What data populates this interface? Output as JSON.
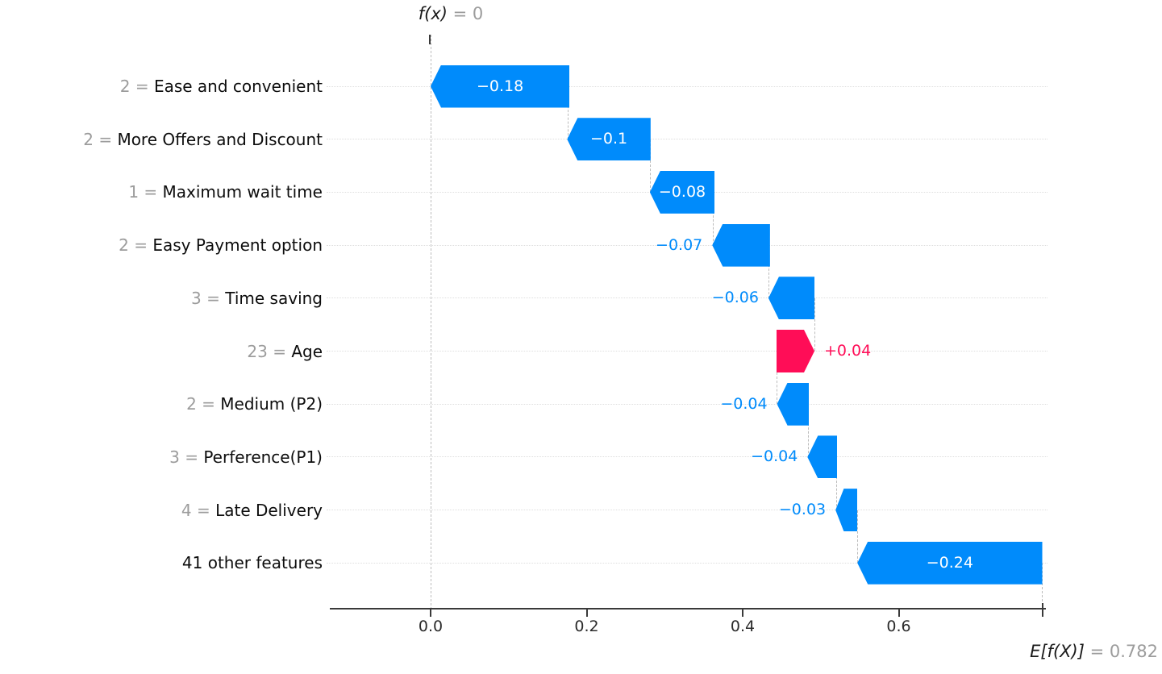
{
  "colors": {
    "negative": "#008bfb",
    "positive": "#ff0d57",
    "axis": "#3a3a3a",
    "grid": "#dedede",
    "connector": "#bcbcbc",
    "feature_text": "#0d0d0d",
    "feature_value_text": "#9c9c9c",
    "inside_label_text": "#ffffff"
  },
  "chart_data": {
    "type": "waterfall",
    "title": "",
    "fx_annotation": {
      "expression": "f(x)",
      "value_text": " = 0"
    },
    "expected_value_annotation": {
      "expression": "E[f(X)]",
      "value_text": " = 0.782"
    },
    "x_axis": {
      "tick_values": [
        0.0,
        0.2,
        0.4,
        0.6
      ],
      "tick_labels": [
        "0.0",
        "0.2",
        "0.4",
        "0.6"
      ],
      "range": [
        -0.131,
        0.789
      ],
      "expected_value": 0.782,
      "expected_value_tick": 0.784,
      "grid": "horizontal-dotted",
      "legend": "none"
    },
    "rows": [
      {
        "feature": "Ease and convenient",
        "feature_value": "2",
        "shap_value": -0.18,
        "label": "−0.18",
        "span": [
          0.0,
          0.178
        ],
        "sign": "negative",
        "label_inside": true
      },
      {
        "feature": "More Offers and Discount",
        "feature_value": "2",
        "shap_value": -0.1,
        "label": "−0.1",
        "span": [
          0.175,
          0.282
        ],
        "sign": "negative",
        "label_inside": true
      },
      {
        "feature": "Maximum wait time",
        "feature_value": "1",
        "shap_value": -0.08,
        "label": "−0.08",
        "span": [
          0.281,
          0.364
        ],
        "sign": "negative",
        "label_inside": true
      },
      {
        "feature": "Easy Payment option",
        "feature_value": "2",
        "shap_value": -0.07,
        "label": "−0.07",
        "span": [
          0.361,
          0.435
        ],
        "sign": "negative",
        "label_inside": false
      },
      {
        "feature": "Time saving",
        "feature_value": "3",
        "shap_value": -0.06,
        "label": "−0.06",
        "span": [
          0.433,
          0.492
        ],
        "sign": "negative",
        "label_inside": false
      },
      {
        "feature": "Age",
        "feature_value": "23",
        "shap_value": 0.04,
        "label": "+0.04",
        "span": [
          0.443,
          0.492
        ],
        "sign": "positive",
        "label_inside": false
      },
      {
        "feature": "Medium (P2)",
        "feature_value": "2",
        "shap_value": -0.04,
        "label": "−0.04",
        "span": [
          0.444,
          0.485
        ],
        "sign": "negative",
        "label_inside": false
      },
      {
        "feature": "Perference(P1)",
        "feature_value": "3",
        "shap_value": -0.04,
        "label": "−0.04",
        "span": [
          0.483,
          0.521
        ],
        "sign": "negative",
        "label_inside": false
      },
      {
        "feature": "Late Delivery",
        "feature_value": "4",
        "shap_value": -0.03,
        "label": "−0.03",
        "span": [
          0.519,
          0.547
        ],
        "sign": "negative",
        "label_inside": false
      },
      {
        "feature": "41 other features",
        "feature_value": null,
        "shap_value": -0.24,
        "label": "−0.24",
        "span": [
          0.547,
          0.784
        ],
        "sign": "negative",
        "label_inside": true
      }
    ],
    "connectors": [
      {
        "x": 0.0,
        "from": -1,
        "to": 10
      },
      {
        "x": 0.1765,
        "from": 0,
        "to": 1
      },
      {
        "x": 0.2815,
        "from": 1,
        "to": 2
      },
      {
        "x": 0.3625,
        "from": 2,
        "to": 3
      },
      {
        "x": 0.434,
        "from": 3,
        "to": 4
      },
      {
        "x": 0.492,
        "from": 4,
        "to": 5
      },
      {
        "x": 0.4435,
        "from": 5,
        "to": 6
      },
      {
        "x": 0.484,
        "from": 6,
        "to": 7
      },
      {
        "x": 0.52,
        "from": 7,
        "to": 8
      },
      {
        "x": 0.547,
        "from": 8,
        "to": 9
      },
      {
        "x": 0.784,
        "from": 9,
        "to": 10
      }
    ]
  }
}
